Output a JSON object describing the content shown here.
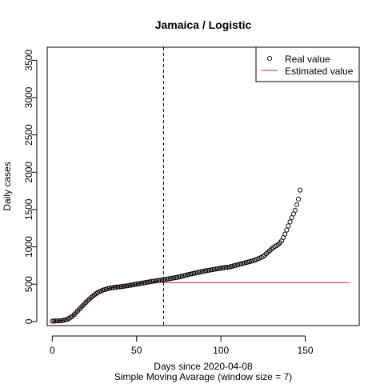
{
  "chart_data": {
    "type": "scatter",
    "title": "Jamaica / Logistic",
    "xlabel": "Days since 2020-04-08",
    "subtitle": "Simple Moving Avarage (window size = 7)",
    "ylabel": "Daily cases",
    "xlim": [
      -3,
      182
    ],
    "ylim": [
      -55,
      3675
    ],
    "x_ticks": [
      0,
      50,
      100,
      150
    ],
    "y_ticks": [
      0,
      500,
      1000,
      1500,
      2000,
      2500,
      3000,
      3500
    ],
    "vline_x": 66,
    "legend": {
      "position": "top-right",
      "entries": [
        {
          "label": "Real value",
          "symbol": "open-circle",
          "color": "#000000"
        },
        {
          "label": "Estimated value",
          "symbol": "line",
          "color": "#c2185b"
        }
      ]
    },
    "series": [
      {
        "name": "Real value",
        "style": "open-circle",
        "color": "#000000",
        "anchors": [
          [
            0,
            5
          ],
          [
            3,
            8
          ],
          [
            6,
            12
          ],
          [
            9,
            30
          ],
          [
            12,
            70
          ],
          [
            15,
            140
          ],
          [
            18,
            210
          ],
          [
            21,
            280
          ],
          [
            24,
            340
          ],
          [
            27,
            390
          ],
          [
            30,
            420
          ],
          [
            33,
            440
          ],
          [
            36,
            455
          ],
          [
            40,
            465
          ],
          [
            45,
            480
          ],
          [
            50,
            500
          ],
          [
            55,
            520
          ],
          [
            60,
            540
          ],
          [
            66,
            560
          ],
          [
            70,
            575
          ],
          [
            75,
            595
          ],
          [
            80,
            625
          ],
          [
            85,
            650
          ],
          [
            90,
            675
          ],
          [
            95,
            695
          ],
          [
            100,
            715
          ],
          [
            105,
            730
          ],
          [
            110,
            760
          ],
          [
            115,
            790
          ],
          [
            120,
            820
          ],
          [
            125,
            870
          ],
          [
            128,
            930
          ],
          [
            131,
            990
          ],
          [
            134,
            1030
          ],
          [
            136,
            1080
          ],
          [
            138,
            1170
          ],
          [
            140,
            1280
          ],
          [
            142,
            1390
          ],
          [
            144,
            1490
          ],
          [
            146,
            1640
          ],
          [
            147,
            1760
          ]
        ]
      },
      {
        "name": "Estimated value",
        "style": "line",
        "color": "#c2185b",
        "anchors": [
          [
            0,
            5
          ],
          [
            3,
            8
          ],
          [
            6,
            12
          ],
          [
            9,
            30
          ],
          [
            12,
            70
          ],
          [
            15,
            140
          ],
          [
            18,
            210
          ],
          [
            21,
            280
          ],
          [
            24,
            340
          ],
          [
            27,
            390
          ],
          [
            30,
            420
          ],
          [
            33,
            440
          ],
          [
            36,
            455
          ],
          [
            40,
            465
          ],
          [
            45,
            480
          ],
          [
            50,
            500
          ],
          [
            55,
            520
          ],
          [
            60,
            535
          ],
          [
            66,
            520
          ],
          [
            100,
            520
          ],
          [
            140,
            520
          ],
          [
            176,
            520
          ]
        ]
      }
    ]
  }
}
